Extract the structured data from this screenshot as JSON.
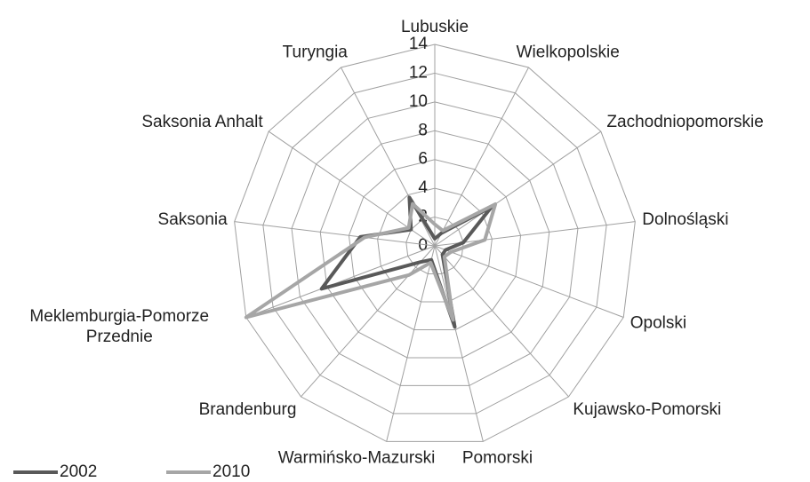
{
  "chart_data": {
    "type": "radar",
    "categories": [
      "Lubuskie",
      "Wielkopolskie",
      "Zachodniopomorskie",
      "Dolnośląski",
      "Opolski",
      "Kujawsko-Pomorski",
      "Pomorski",
      "Warmińsko-Mazurski",
      "Brandenburg",
      "Meklemburgia-Pomorze Przednie",
      "Saksonia",
      "Saksonia Anhalt",
      "Turyngia"
    ],
    "series": [
      {
        "name": "2002",
        "color": "#595959",
        "values": [
          0.5,
          1.0,
          4.8,
          2.0,
          0.8,
          0.8,
          5.8,
          1.0,
          1.5,
          8.4,
          5.2,
          2.0,
          3.8
        ]
      },
      {
        "name": "2010",
        "color": "#a6a6a6",
        "values": [
          1.5,
          1.2,
          5.1,
          3.5,
          1.2,
          1.0,
          5.3,
          1.2,
          2.7,
          14,
          4.9,
          2.2,
          3.3
        ]
      }
    ],
    "ylim": [
      0,
      14
    ],
    "yticks": [
      0,
      2,
      4,
      6,
      8,
      10,
      12,
      14
    ],
    "grid": true,
    "legend": "bottom-left"
  }
}
